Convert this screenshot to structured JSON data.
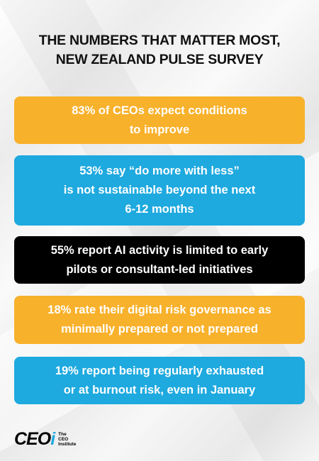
{
  "header": {
    "title_lines": [
      "THE NUMBERS THAT MATTER MOST,",
      "NEW ZEALAND PULSE SURVEY"
    ]
  },
  "cards": [
    {
      "lines": [
        "83% of CEOs expect conditions",
        "to improve"
      ]
    },
    {
      "lines": [
        "53% say “do more with less”",
        "is not sustainable beyond the next",
        "6-12 months"
      ]
    },
    {
      "lines": [
        "55% report AI activity is limited to early",
        "pilots or consultant-led initiatives"
      ]
    },
    {
      "lines": [
        "18% rate their digital risk governance as",
        "minimally prepared or not prepared"
      ]
    },
    {
      "lines": [
        "19% report being regularly exhausted",
        "or at burnout risk, even in January"
      ]
    }
  ],
  "logo": {
    "mark": "CEO",
    "accent": "i",
    "institute_lines": [
      "The",
      "CEO",
      "Institute"
    ]
  }
}
